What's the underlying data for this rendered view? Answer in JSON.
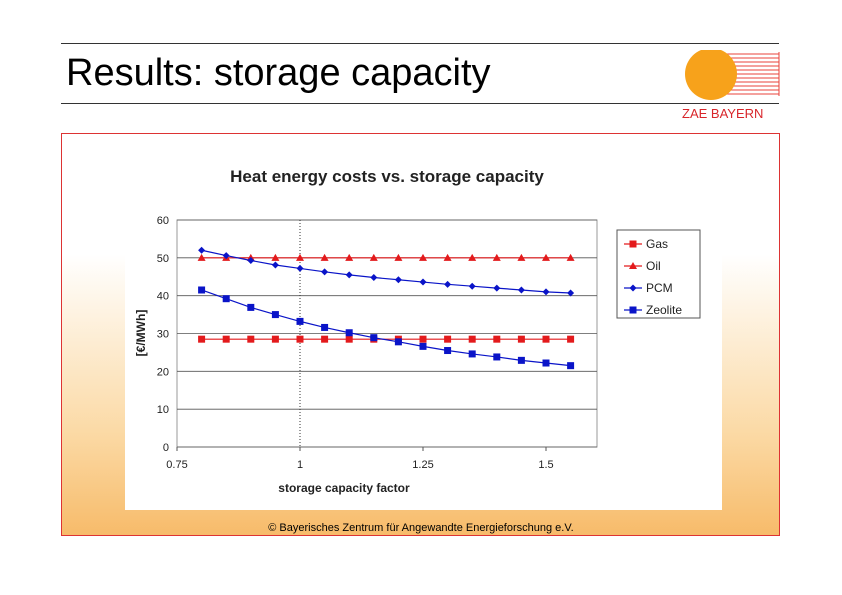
{
  "slide": {
    "title": "Results: storage capacity",
    "logo_text": "ZAE BAYERN",
    "copyright": "© Bayerisches Zentrum für Angewandte Energieforschung e.V."
  },
  "colors": {
    "red": "#e31a1c",
    "blue": "#0a14c8",
    "logo_orange": "#f7a21b"
  },
  "chart_data": {
    "type": "line",
    "title": "Heat energy costs vs. storage capacity",
    "xlabel": "storage capacity factor",
    "ylabel": "[€/MWh]",
    "xlim": [
      0.75,
      1.625
    ],
    "ylim": [
      0,
      60
    ],
    "xticks": [
      "0.75",
      "1",
      "1.25",
      "1.5"
    ],
    "xtick_values": [
      0.75,
      1,
      1.25,
      1.5
    ],
    "yticks": [
      "0",
      "10",
      "20",
      "30",
      "40",
      "50",
      "60"
    ],
    "ytick_values": [
      0,
      10,
      20,
      30,
      40,
      50,
      60
    ],
    "reference_line_x": 1,
    "grid": true,
    "legend": "right",
    "x": [
      0.8,
      0.85,
      0.9,
      0.95,
      1.0,
      1.05,
      1.1,
      1.15,
      1.2,
      1.25,
      1.3,
      1.35,
      1.4,
      1.45,
      1.5,
      1.55
    ],
    "series": [
      {
        "name": "Gas",
        "color": "#e31a1c",
        "marker": "square",
        "values": [
          28.5,
          28.5,
          28.5,
          28.5,
          28.5,
          28.5,
          28.5,
          28.5,
          28.5,
          28.5,
          28.5,
          28.5,
          28.5,
          28.5,
          28.5,
          28.5
        ]
      },
      {
        "name": "Oil",
        "color": "#e31a1c",
        "marker": "triangle",
        "values": [
          50,
          50,
          50,
          50,
          50,
          50,
          50,
          50,
          50,
          50,
          50,
          50,
          50,
          50,
          50,
          50
        ]
      },
      {
        "name": "PCM",
        "color": "#0a14c8",
        "marker": "diamond",
        "values": [
          52,
          50.6,
          49.3,
          48.1,
          47.2,
          46.3,
          45.5,
          44.8,
          44.2,
          43.6,
          43.0,
          42.5,
          42.0,
          41.5,
          41.0,
          40.7
        ]
      },
      {
        "name": "Zeolite",
        "color": "#0a14c8",
        "marker": "square",
        "values": [
          41.5,
          39.2,
          36.9,
          35.0,
          33.2,
          31.6,
          30.2,
          28.9,
          27.8,
          26.6,
          25.5,
          24.6,
          23.8,
          22.9,
          22.2,
          21.5
        ]
      }
    ]
  }
}
